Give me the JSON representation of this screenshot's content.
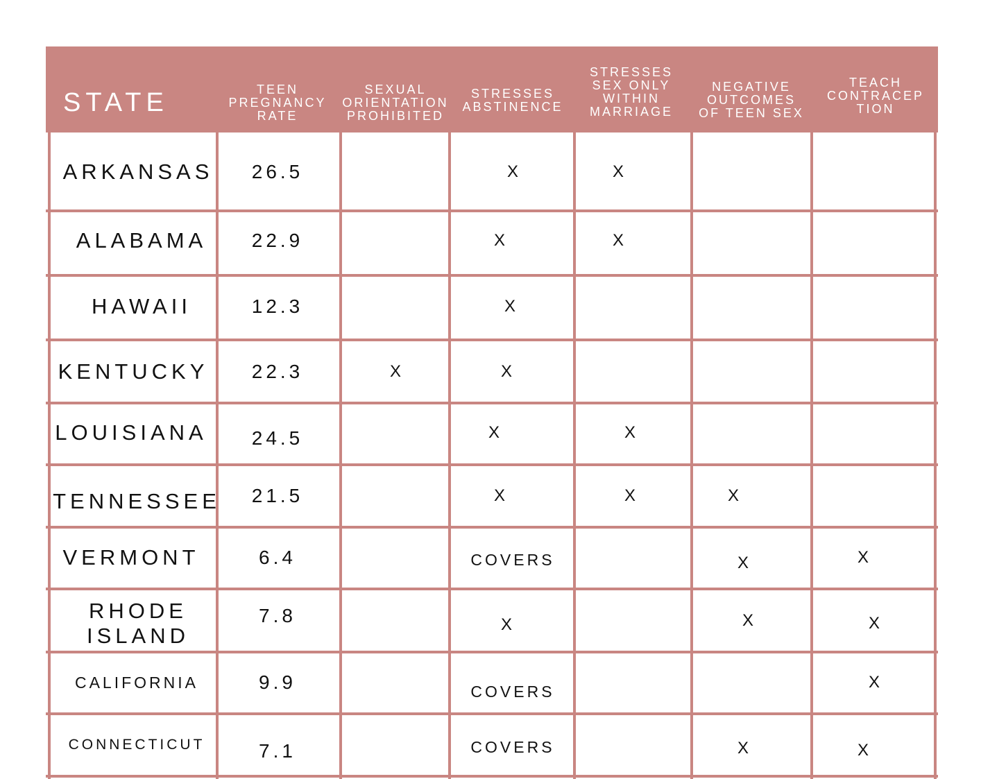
{
  "chart_data": {
    "type": "table",
    "columns": [
      "STATE",
      "TEEN\nPREGNANCY\nRATE",
      "SEXUAL\nORIENTATION\nPROHIBITED",
      "STRESSES\nABSTINENCE",
      "STRESSES\nSEX ONLY\nWITHIN\nMARRIAGE",
      "NEGATIVE\nOUTCOMES\nOF TEEN SEX",
      "TEACH\nCONTRACEP\nTION"
    ],
    "rows": [
      [
        "ARKANSAS",
        "26.5",
        "",
        "X",
        "X",
        "",
        ""
      ],
      [
        "ALABAMA",
        "22.9",
        "",
        "X",
        "X",
        "",
        ""
      ],
      [
        "HAWAII",
        "12.3",
        "",
        "X",
        "",
        "",
        ""
      ],
      [
        "KENTUCKY",
        "22.3",
        "X",
        "X",
        "",
        "",
        ""
      ],
      [
        "LOUISIANA",
        "24.5",
        "",
        "X",
        "X",
        "",
        ""
      ],
      [
        "TENNESSEE",
        "21.5",
        "",
        "X",
        "X",
        "X",
        ""
      ],
      [
        "VERMONT",
        "6.4",
        "",
        "COVERS",
        "",
        "X",
        "X"
      ],
      [
        "RHODE\nISLAND",
        "7.8",
        "",
        "X",
        "",
        "X",
        "X"
      ],
      [
        "CALIFORNIA",
        "9.9",
        "",
        "COVERS",
        "",
        "",
        "X"
      ],
      [
        "CONNECTICUT",
        "7.1",
        "",
        "COVERS",
        "",
        "X",
        "X"
      ]
    ]
  },
  "colors": {
    "header_background": "#c98682",
    "grid_line": "#c98682",
    "header_text": "#ffffff",
    "body_text": "#111111"
  }
}
